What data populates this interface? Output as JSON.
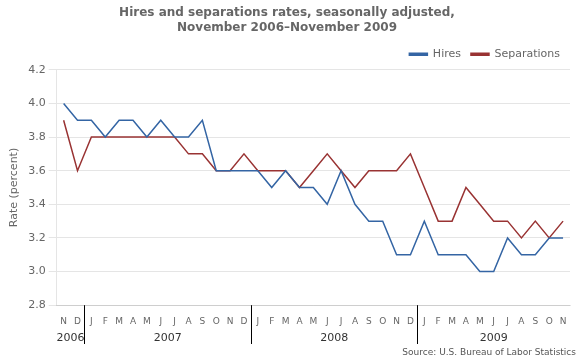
{
  "chart_data": {
    "type": "line",
    "title": "Hires and separations rates, seasonally adjusted,\nNovember 2006–November 2009",
    "ylabel": "Rate (percent)",
    "categories": [
      "N",
      "D",
      "J",
      "F",
      "M",
      "A",
      "M",
      "J",
      "J",
      "A",
      "S",
      "O",
      "N",
      "D",
      "J",
      "F",
      "M",
      "A",
      "M",
      "J",
      "J",
      "A",
      "S",
      "O",
      "N",
      "D",
      "J",
      "F",
      "M",
      "A",
      "M",
      "J",
      "J",
      "A",
      "S",
      "O",
      "N"
    ],
    "series": [
      {
        "name": "Hires",
        "color": "#3465A4",
        "values": [
          4.0,
          3.9,
          3.9,
          3.8,
          3.9,
          3.9,
          3.8,
          3.9,
          3.8,
          3.8,
          3.9,
          3.6,
          3.6,
          3.6,
          3.6,
          3.5,
          3.6,
          3.5,
          3.5,
          3.4,
          3.6,
          3.4,
          3.3,
          3.3,
          3.1,
          3.1,
          3.3,
          3.1,
          3.1,
          3.1,
          3.0,
          3.0,
          3.2,
          3.1,
          3.1,
          3.2,
          3.2
        ]
      },
      {
        "name": "Separations",
        "color": "#993333",
        "values": [
          3.9,
          3.6,
          3.8,
          3.8,
          3.8,
          3.8,
          3.8,
          3.8,
          3.8,
          3.7,
          3.7,
          3.6,
          3.6,
          3.7,
          3.6,
          3.6,
          3.6,
          3.5,
          3.6,
          3.7,
          3.6,
          3.5,
          3.6,
          3.6,
          3.6,
          3.7,
          3.5,
          3.3,
          3.3,
          3.5,
          3.4,
          3.3,
          3.3,
          3.2,
          3.3,
          3.2,
          3.3
        ]
      }
    ],
    "ylim": [
      2.8,
      4.2
    ],
    "yticks": [
      2.8,
      {
        "value": 3.0,
        "label": "3.0"
      },
      3.2,
      3.4,
      3.6,
      3.8,
      {
        "value": 4.0,
        "label": "4.0"
      },
      4.2
    ],
    "grid": true,
    "legend": "upper right",
    "annotations": [
      {
        "text": "2006",
        "x": 0.5
      },
      {
        "text": "2007",
        "x": 7.5
      },
      {
        "text": "2008",
        "x": 19.5
      },
      {
        "text": "2009",
        "x": 31.0
      },
      {
        "text": "Source: U.S. Bureau of Labor Statistics"
      }
    ]
  }
}
